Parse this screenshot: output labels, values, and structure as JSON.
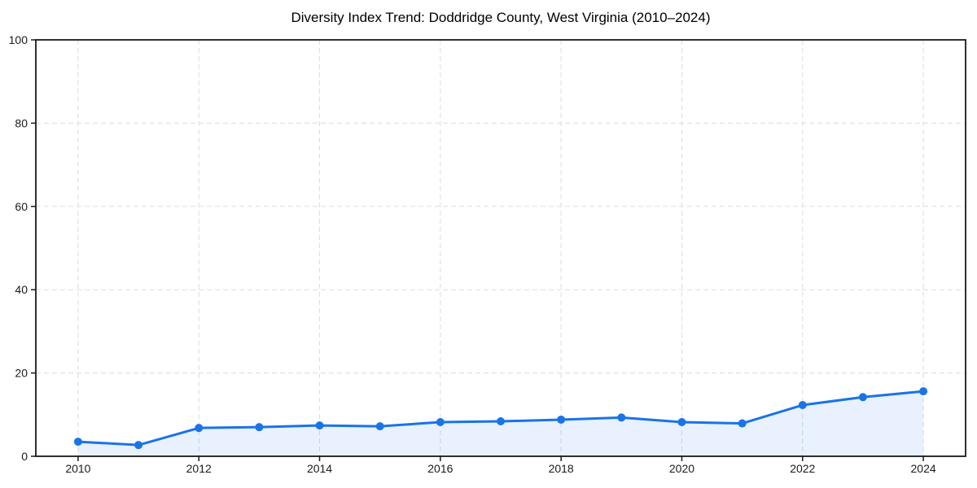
{
  "figure": {
    "background": "#ffffff"
  },
  "chart_data": {
    "type": "line",
    "title": "Diversity Index Trend: Doddridge County, West Virginia (2010–2024)",
    "x": [
      2010,
      2011,
      2012,
      2013,
      2014,
      2015,
      2016,
      2017,
      2018,
      2019,
      2020,
      2021,
      2022,
      2023,
      2024
    ],
    "series": [
      {
        "name": "Diversity Index",
        "values": [
          3.5,
          2.7,
          6.8,
          7.0,
          7.4,
          7.2,
          8.2,
          8.4,
          8.8,
          9.3,
          8.2,
          7.9,
          12.3,
          14.2,
          15.6
        ],
        "color": "#1a73e8",
        "marker": "circle",
        "marker_radius": 5,
        "line_width": 3,
        "fill_below": true,
        "fill_opacity": 0.1
      }
    ],
    "xlabel": "",
    "ylabel": "",
    "xlim": [
      2009.3,
      2024.7
    ],
    "ylim": [
      0,
      100
    ],
    "xticks": [
      2010,
      2012,
      2014,
      2016,
      2018,
      2020,
      2022,
      2024
    ],
    "yticks": [
      0,
      20,
      40,
      60,
      80,
      100
    ],
    "grid": true,
    "grid_color": "#dcdcdc",
    "grid_dash": "6 4",
    "axis_color": "#1a1a1a",
    "tick_label_color": "#1a1a1a",
    "legend_position": "none"
  }
}
